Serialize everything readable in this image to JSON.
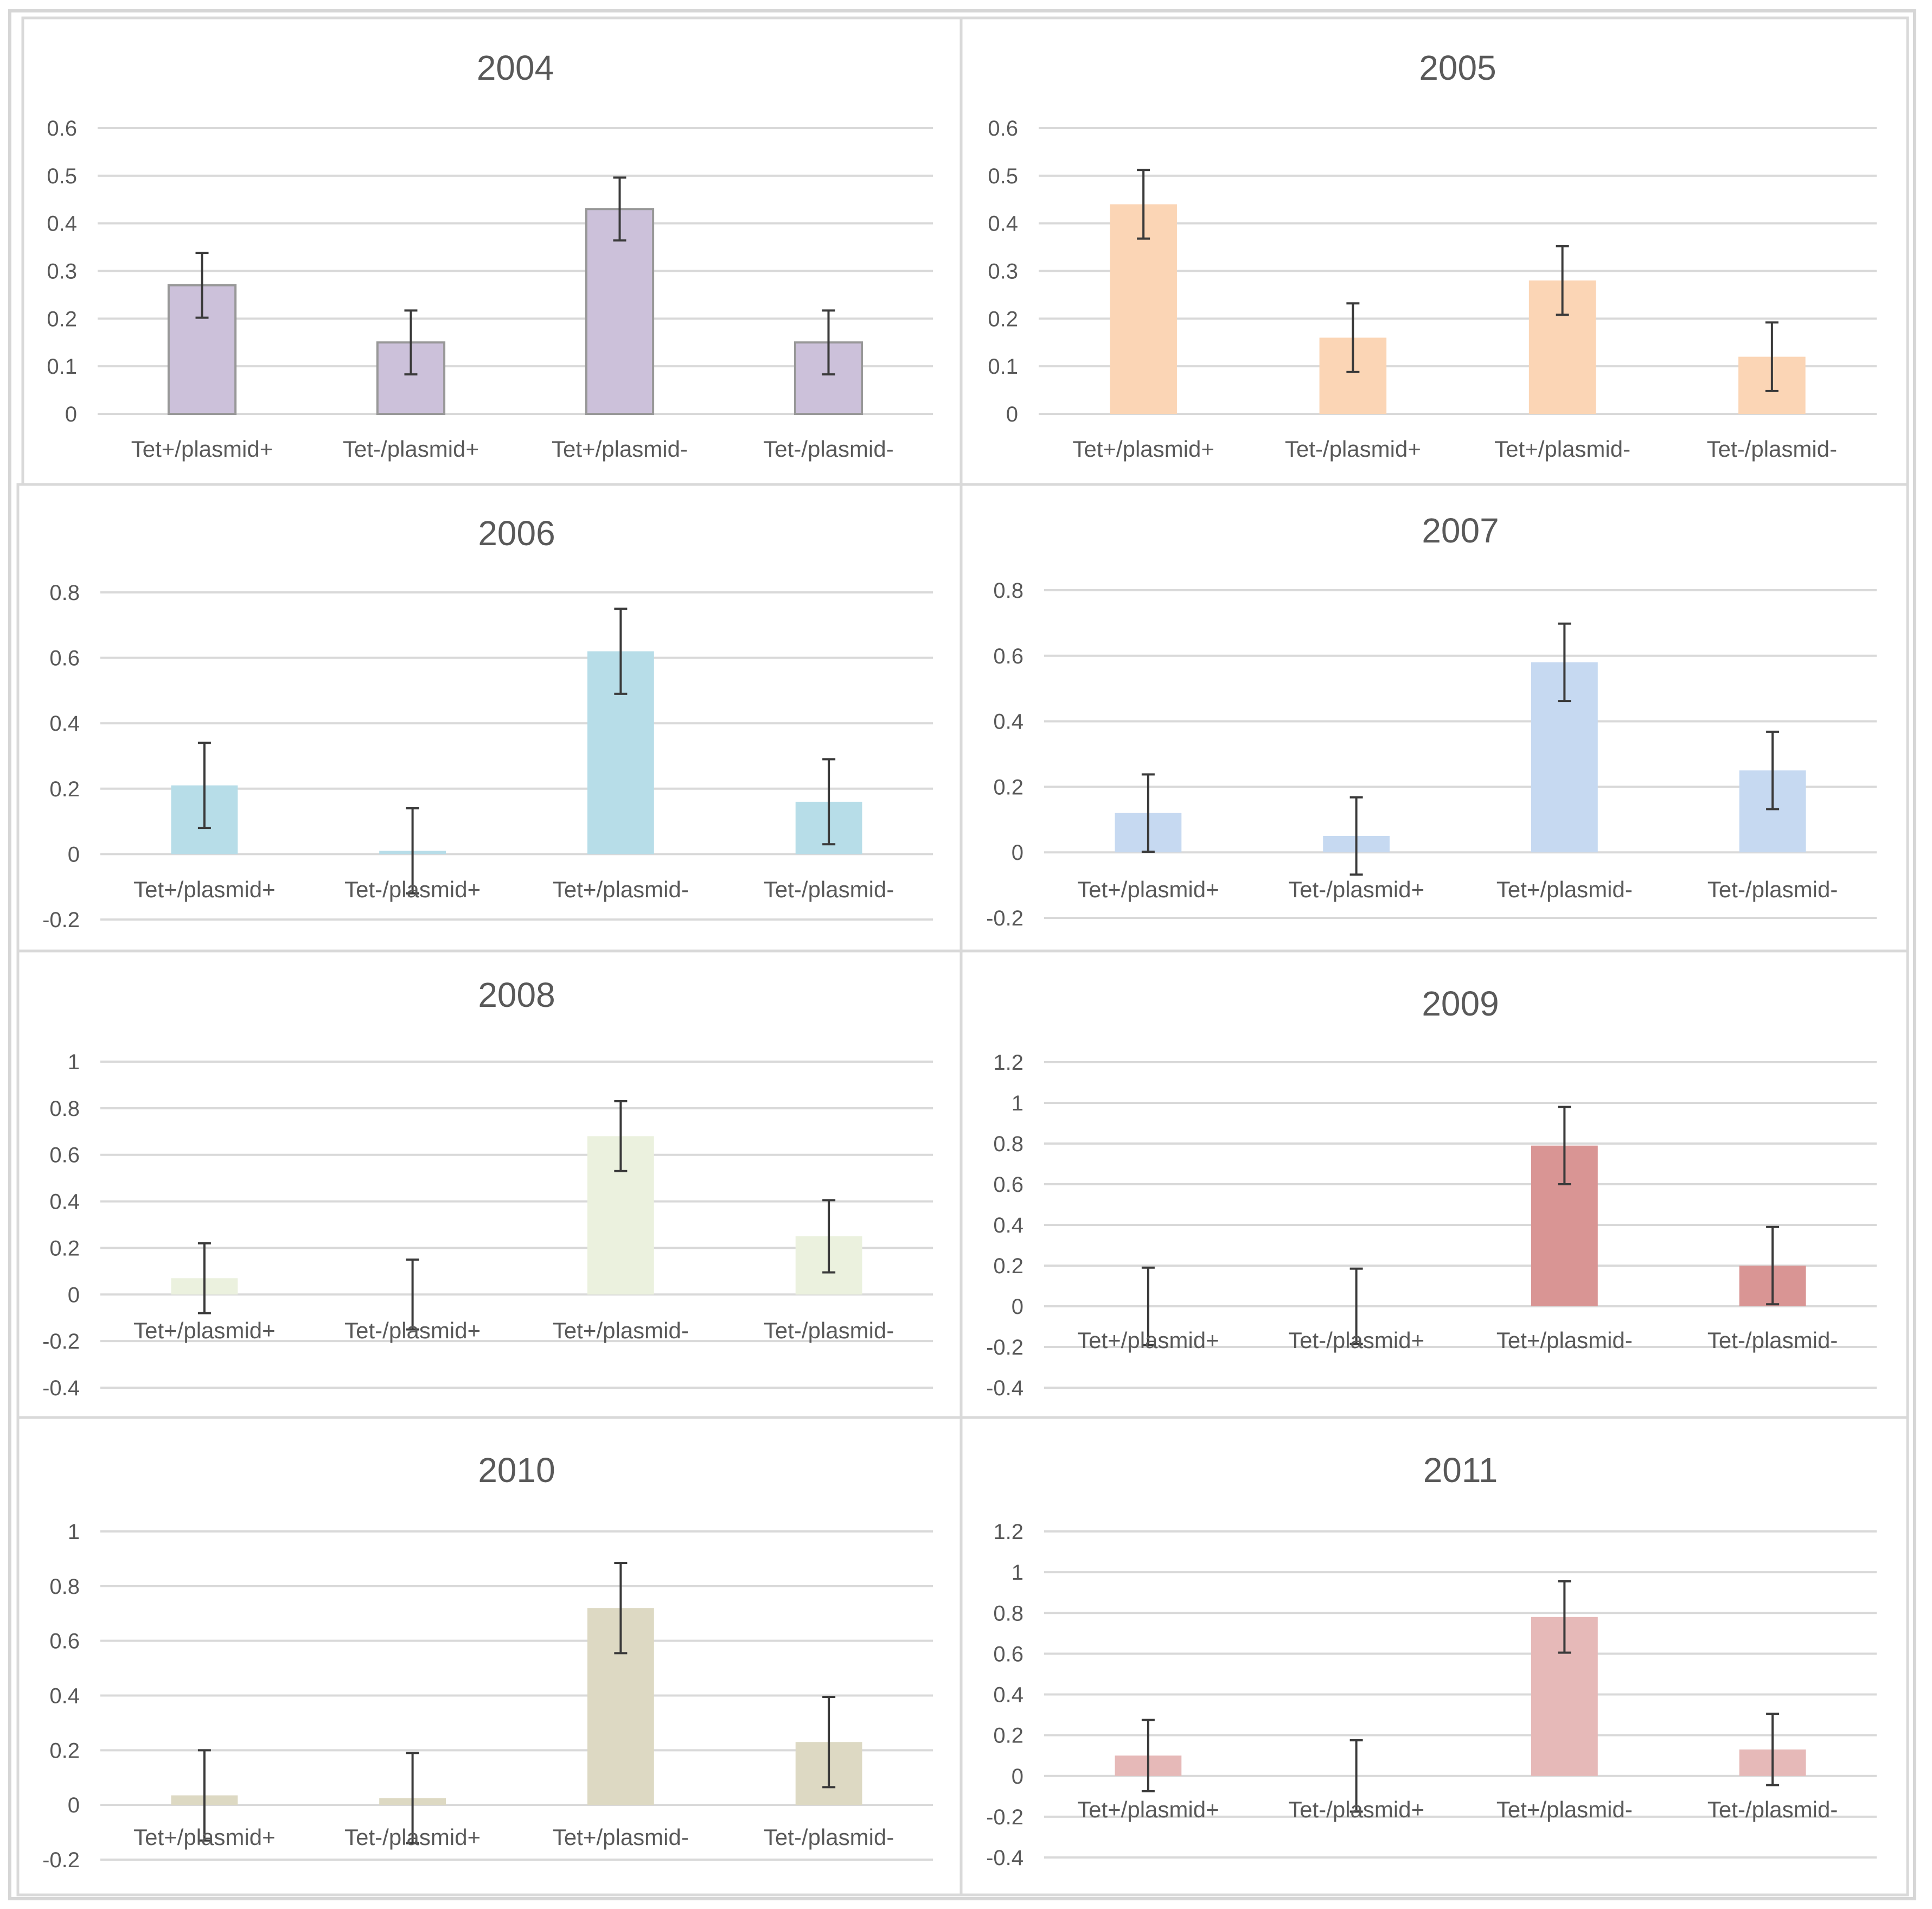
{
  "chart_data": [
    {
      "type": "bar",
      "title": "2004",
      "categories": [
        "Tet+/plasmid+",
        "Tet-/plasmid+",
        "Tet+/plasmid-",
        "Tet-/plasmid-"
      ],
      "values": [
        0.27,
        0.15,
        0.43,
        0.15
      ],
      "errors": [
        0.068,
        0.067,
        0.066,
        0.067
      ],
      "yticks": [
        "0.6",
        "0.5",
        "0.4",
        "0.3",
        "0.2",
        "0.1",
        "0"
      ],
      "ylim": [
        0,
        0.6
      ],
      "xlabel": "",
      "ylabel": "",
      "color": "#ccc1da",
      "outline": "#989898"
    },
    {
      "type": "bar",
      "title": "2005",
      "categories": [
        "Tet+/plasmid+",
        "Tet-/plasmid+",
        "Tet+/plasmid-",
        "Tet-/plasmid-"
      ],
      "values": [
        0.44,
        0.16,
        0.28,
        0.12
      ],
      "errors": [
        0.072,
        0.072,
        0.072,
        0.072
      ],
      "yticks": [
        "0.6",
        "0.5",
        "0.4",
        "0.3",
        "0.2",
        "0.1",
        "0"
      ],
      "ylim": [
        0,
        0.6
      ],
      "xlabel": "",
      "ylabel": "",
      "color": "#fbd5b5"
    },
    {
      "type": "bar",
      "title": "2006",
      "categories": [
        "Tet+/plasmid+",
        "Tet-/plasmid+",
        "Tet+/plasmid-",
        "Tet-/plasmid-"
      ],
      "values": [
        0.21,
        0.01,
        0.62,
        0.16
      ],
      "errors": [
        0.13,
        0.13,
        0.13,
        0.13
      ],
      "yticks": [
        "0.8",
        "0.6",
        "0.4",
        "0.2",
        "0",
        "-0.2"
      ],
      "ylim": [
        -0.2,
        0.8
      ],
      "xlabel": "",
      "ylabel": "",
      "color": "#b7dde8"
    },
    {
      "type": "bar",
      "title": "2007",
      "categories": [
        "Tet+/plasmid+",
        "Tet-/plasmid+",
        "Tet+/plasmid-",
        "Tet-/plasmid-"
      ],
      "values": [
        0.12,
        0.05,
        0.58,
        0.25
      ],
      "errors": [
        0.118,
        0.118,
        0.118,
        0.118
      ],
      "yticks": [
        "0.8",
        "0.6",
        "0.4",
        "0.2",
        "0",
        "-0.2"
      ],
      "ylim": [
        -0.2,
        0.8
      ],
      "xlabel": "",
      "ylabel": "",
      "color": "#c6d9f1"
    },
    {
      "type": "bar",
      "title": "2008",
      "categories": [
        "Tet+/plasmid+",
        "Tet-/plasmid+",
        "Tet+/plasmid-",
        "Tet-/plasmid-"
      ],
      "values": [
        0.07,
        0.0,
        0.68,
        0.25
      ],
      "errors": [
        0.15,
        0.15,
        0.15,
        0.155
      ],
      "yticks": [
        "1",
        "0.8",
        "0.6",
        "0.4",
        "0.2",
        "0",
        "-0.2",
        "-0.4"
      ],
      "ylim": [
        -0.4,
        1.0
      ],
      "xlabel": "",
      "ylabel": "",
      "color": "#ebf1de"
    },
    {
      "type": "bar",
      "title": "2009",
      "categories": [
        "Tet+/plasmid+",
        "Tet-/plasmid+",
        "Tet+/plasmid-",
        "Tet-/plasmid-"
      ],
      "values": [
        0.0,
        0.0,
        0.79,
        0.2
      ],
      "errors": [
        0.19,
        0.185,
        0.19,
        0.19
      ],
      "yticks": [
        "1.2",
        "1",
        "0.8",
        "0.6",
        "0.4",
        "0.2",
        "0",
        "-0.2",
        "-0.4"
      ],
      "ylim": [
        -0.4,
        1.2
      ],
      "xlabel": "",
      "ylabel": "",
      "color": "#d99594"
    },
    {
      "type": "bar",
      "title": "2010",
      "categories": [
        "Tet+/plasmid+",
        "Tet-/plasmid+",
        "Tet+/plasmid-",
        "Tet-/plasmid-"
      ],
      "values": [
        0.035,
        0.025,
        0.72,
        0.23
      ],
      "errors": [
        0.165,
        0.165,
        0.165,
        0.165
      ],
      "yticks": [
        "1",
        "0.8",
        "0.6",
        "0.4",
        "0.2",
        "0",
        "-0.2"
      ],
      "ylim": [
        -0.2,
        1.0
      ],
      "xlabel": "",
      "ylabel": "",
      "color": "#ddd9c3"
    },
    {
      "type": "bar",
      "title": "2011",
      "categories": [
        "Tet+/plasmid+",
        "Tet-/plasmid+",
        "Tet+/plasmid-",
        "Tet-/plasmid-"
      ],
      "values": [
        0.1,
        0.0,
        0.78,
        0.13
      ],
      "errors": [
        0.175,
        0.175,
        0.175,
        0.175
      ],
      "yticks": [
        "1.2",
        "1",
        "0.8",
        "0.6",
        "0.4",
        "0.2",
        "0",
        "-0.2",
        "-0.4"
      ],
      "ylim": [
        -0.4,
        1.2
      ],
      "xlabel": "",
      "ylabel": "",
      "color": "#e6b9b8"
    }
  ]
}
